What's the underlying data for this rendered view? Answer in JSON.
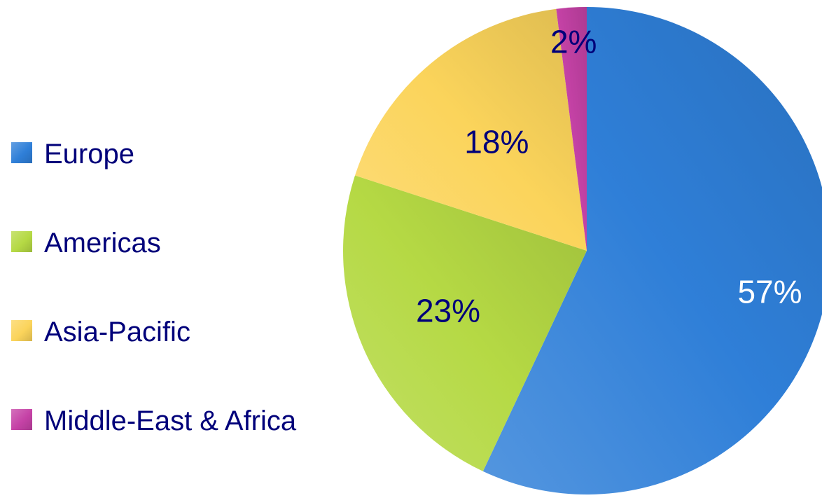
{
  "chart_data": {
    "type": "pie",
    "title": "",
    "categories": [
      "Europe",
      "Americas",
      "Asia-Pacific",
      "Middle-East & Africa"
    ],
    "values": [
      57,
      23,
      18,
      2
    ],
    "labels": [
      "57%",
      "23%",
      "18%",
      "2%"
    ],
    "legend_position": "left",
    "colors": [
      "#2f7fd8",
      "#b5d944",
      "#fbd45b",
      "#c542a6"
    ],
    "label_colors": [
      "#ffffff",
      "#00007a",
      "#00007a",
      "#00007a"
    ]
  }
}
